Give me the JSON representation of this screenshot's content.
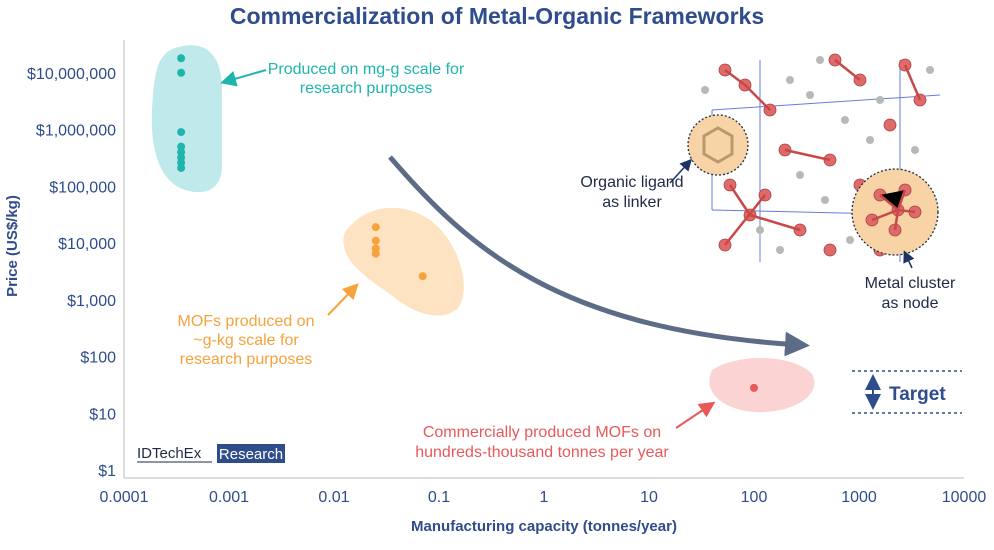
{
  "chart_data": {
    "type": "scatter",
    "title": "Commercialization of Metal-Organic Frameworks",
    "xlabel": "Manufacturing capacity (tonnes/year)",
    "ylabel": "Price (US$/kg)",
    "x_scale": "log",
    "y_scale": "log",
    "xlim": [
      0.0001,
      10000
    ],
    "ylim": [
      1,
      40000000
    ],
    "x_ticks": [
      {
        "value": 0.0001,
        "label": "0.0001"
      },
      {
        "value": 0.001,
        "label": "0.001"
      },
      {
        "value": 0.01,
        "label": "0.01"
      },
      {
        "value": 0.1,
        "label": "0.1"
      },
      {
        "value": 1,
        "label": "1"
      },
      {
        "value": 10,
        "label": "10"
      },
      {
        "value": 100,
        "label": "100"
      },
      {
        "value": 1000,
        "label": "1000"
      },
      {
        "value": 10000,
        "label": "10000"
      }
    ],
    "y_ticks": [
      {
        "value": 1,
        "label": "$1"
      },
      {
        "value": 10,
        "label": "$10"
      },
      {
        "value": 100,
        "label": "$100"
      },
      {
        "value": 1000,
        "label": "$1,000"
      },
      {
        "value": 10000,
        "label": "$10,000"
      },
      {
        "value": 100000,
        "label": "$100,000"
      },
      {
        "value": 1000000,
        "label": "$1,000,000"
      },
      {
        "value": 10000000,
        "label": "$10,000,000"
      }
    ],
    "grid": false,
    "series": [
      {
        "color": "#1fb5ad",
        "blob_color": "#bfe9ea",
        "label": "Produced on mg-g scale for research purposes",
        "points": [
          {
            "x": 0.00035,
            "y": 18000000
          },
          {
            "x": 0.00035,
            "y": 10000000
          },
          {
            "x": 0.00035,
            "y": 900000
          },
          {
            "x": 0.00035,
            "y": 500000
          },
          {
            "x": 0.00035,
            "y": 400000
          },
          {
            "x": 0.00035,
            "y": 320000
          },
          {
            "x": 0.00035,
            "y": 260000
          },
          {
            "x": 0.00035,
            "y": 210000
          }
        ]
      },
      {
        "color": "#f7a23b",
        "blob_color": "#fde3c2",
        "label": "MOFs produced on ~g-kg scale for research purposes",
        "points": [
          {
            "x": 0.025,
            "y": 19000
          },
          {
            "x": 0.025,
            "y": 11000
          },
          {
            "x": 0.025,
            "y": 8000
          },
          {
            "x": 0.025,
            "y": 6500
          },
          {
            "x": 0.07,
            "y": 2600
          }
        ]
      },
      {
        "color": "#e85a5a",
        "blob_color": "#fbd3d3",
        "label": "Commercially produced MOFs on hundreds-thousand tonnes per year",
        "points": [
          {
            "x": 100,
            "y": 28
          }
        ]
      }
    ],
    "annotations": {
      "research_mg_g": [
        "Produced on mg-g scale for",
        "research purposes"
      ],
      "research_g_kg": [
        "MOFs produced on",
        "~g-kg scale for",
        "research purposes"
      ],
      "commercial": [
        "Commercially produced MOFs on",
        "hundreds-thousand tonnes per year"
      ],
      "target": "Target",
      "ligand": [
        "Organic ligand",
        "as linker"
      ],
      "cluster": [
        "Metal cluster",
        "as node"
      ]
    }
  },
  "brand": {
    "name": "IDTechEx",
    "tag": "Research"
  }
}
